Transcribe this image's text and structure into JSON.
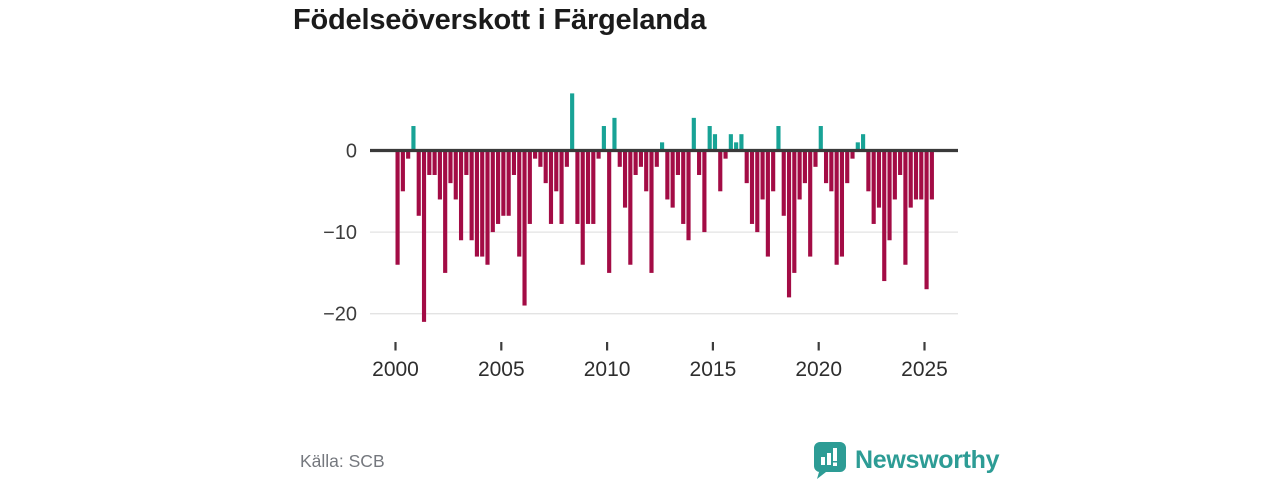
{
  "title": "Födelseöverskott i Färgelanda",
  "source": "Källa: SCB",
  "branding": {
    "logo_text": "Newsworthy",
    "logo_icon": "speech-bubble-bar-chart",
    "brand_color": "#2d9c95"
  },
  "chart_data": {
    "type": "bar",
    "title": "Födelseöverskott i Färgelanda",
    "period": "quarterly",
    "x_start": {
      "year": 2000,
      "quarter": 1
    },
    "x_end": {
      "year": 2025,
      "quarter": 2
    },
    "periods_per_year": 4,
    "values": [
      -14,
      -5,
      -1,
      3,
      -8,
      -21,
      -3,
      -3,
      -6,
      -15,
      -4,
      -6,
      -11,
      -3,
      -11,
      -13,
      -13,
      -14,
      -10,
      -9,
      -8,
      -8,
      -3,
      -13,
      -19,
      -9,
      -1,
      -2,
      -4,
      -9,
      -5,
      -9,
      -2,
      7,
      -9,
      -14,
      -9,
      -9,
      -1,
      3,
      -15,
      4,
      -2,
      -7,
      -14,
      -3,
      -2,
      -5,
      -15,
      -2,
      1,
      -6,
      -7,
      -3,
      -9,
      -11,
      4,
      -3,
      -10,
      3,
      2,
      -5,
      -1,
      2,
      1,
      2,
      -4,
      -9,
      -10,
      -6,
      -13,
      -5,
      3,
      -8,
      -18,
      -15,
      -6,
      -4,
      -13,
      -2,
      3,
      -4,
      -5,
      -14,
      -13,
      -4,
      -1,
      1,
      2,
      -5,
      -9,
      -7,
      -16,
      -11,
      -6,
      -3,
      -14,
      -7,
      -6,
      -6,
      -17,
      -6
    ],
    "xticks": [
      2000,
      2005,
      2010,
      2015,
      2020,
      2025
    ],
    "yticks": [
      0,
      -10,
      -20
    ],
    "ytick_labels": [
      "0",
      "−10",
      "−20"
    ],
    "ylim": [
      -23,
      8.5
    ],
    "xlabel": "",
    "ylabel": "",
    "grid": "horizontal",
    "legend": "none",
    "positive_color": "#18a396",
    "negative_color": "#a30c45",
    "axis_line_color": "#3a3a3a",
    "gridline_color": "#e3e3e3",
    "tick_text_color": "#3d3d3d"
  }
}
